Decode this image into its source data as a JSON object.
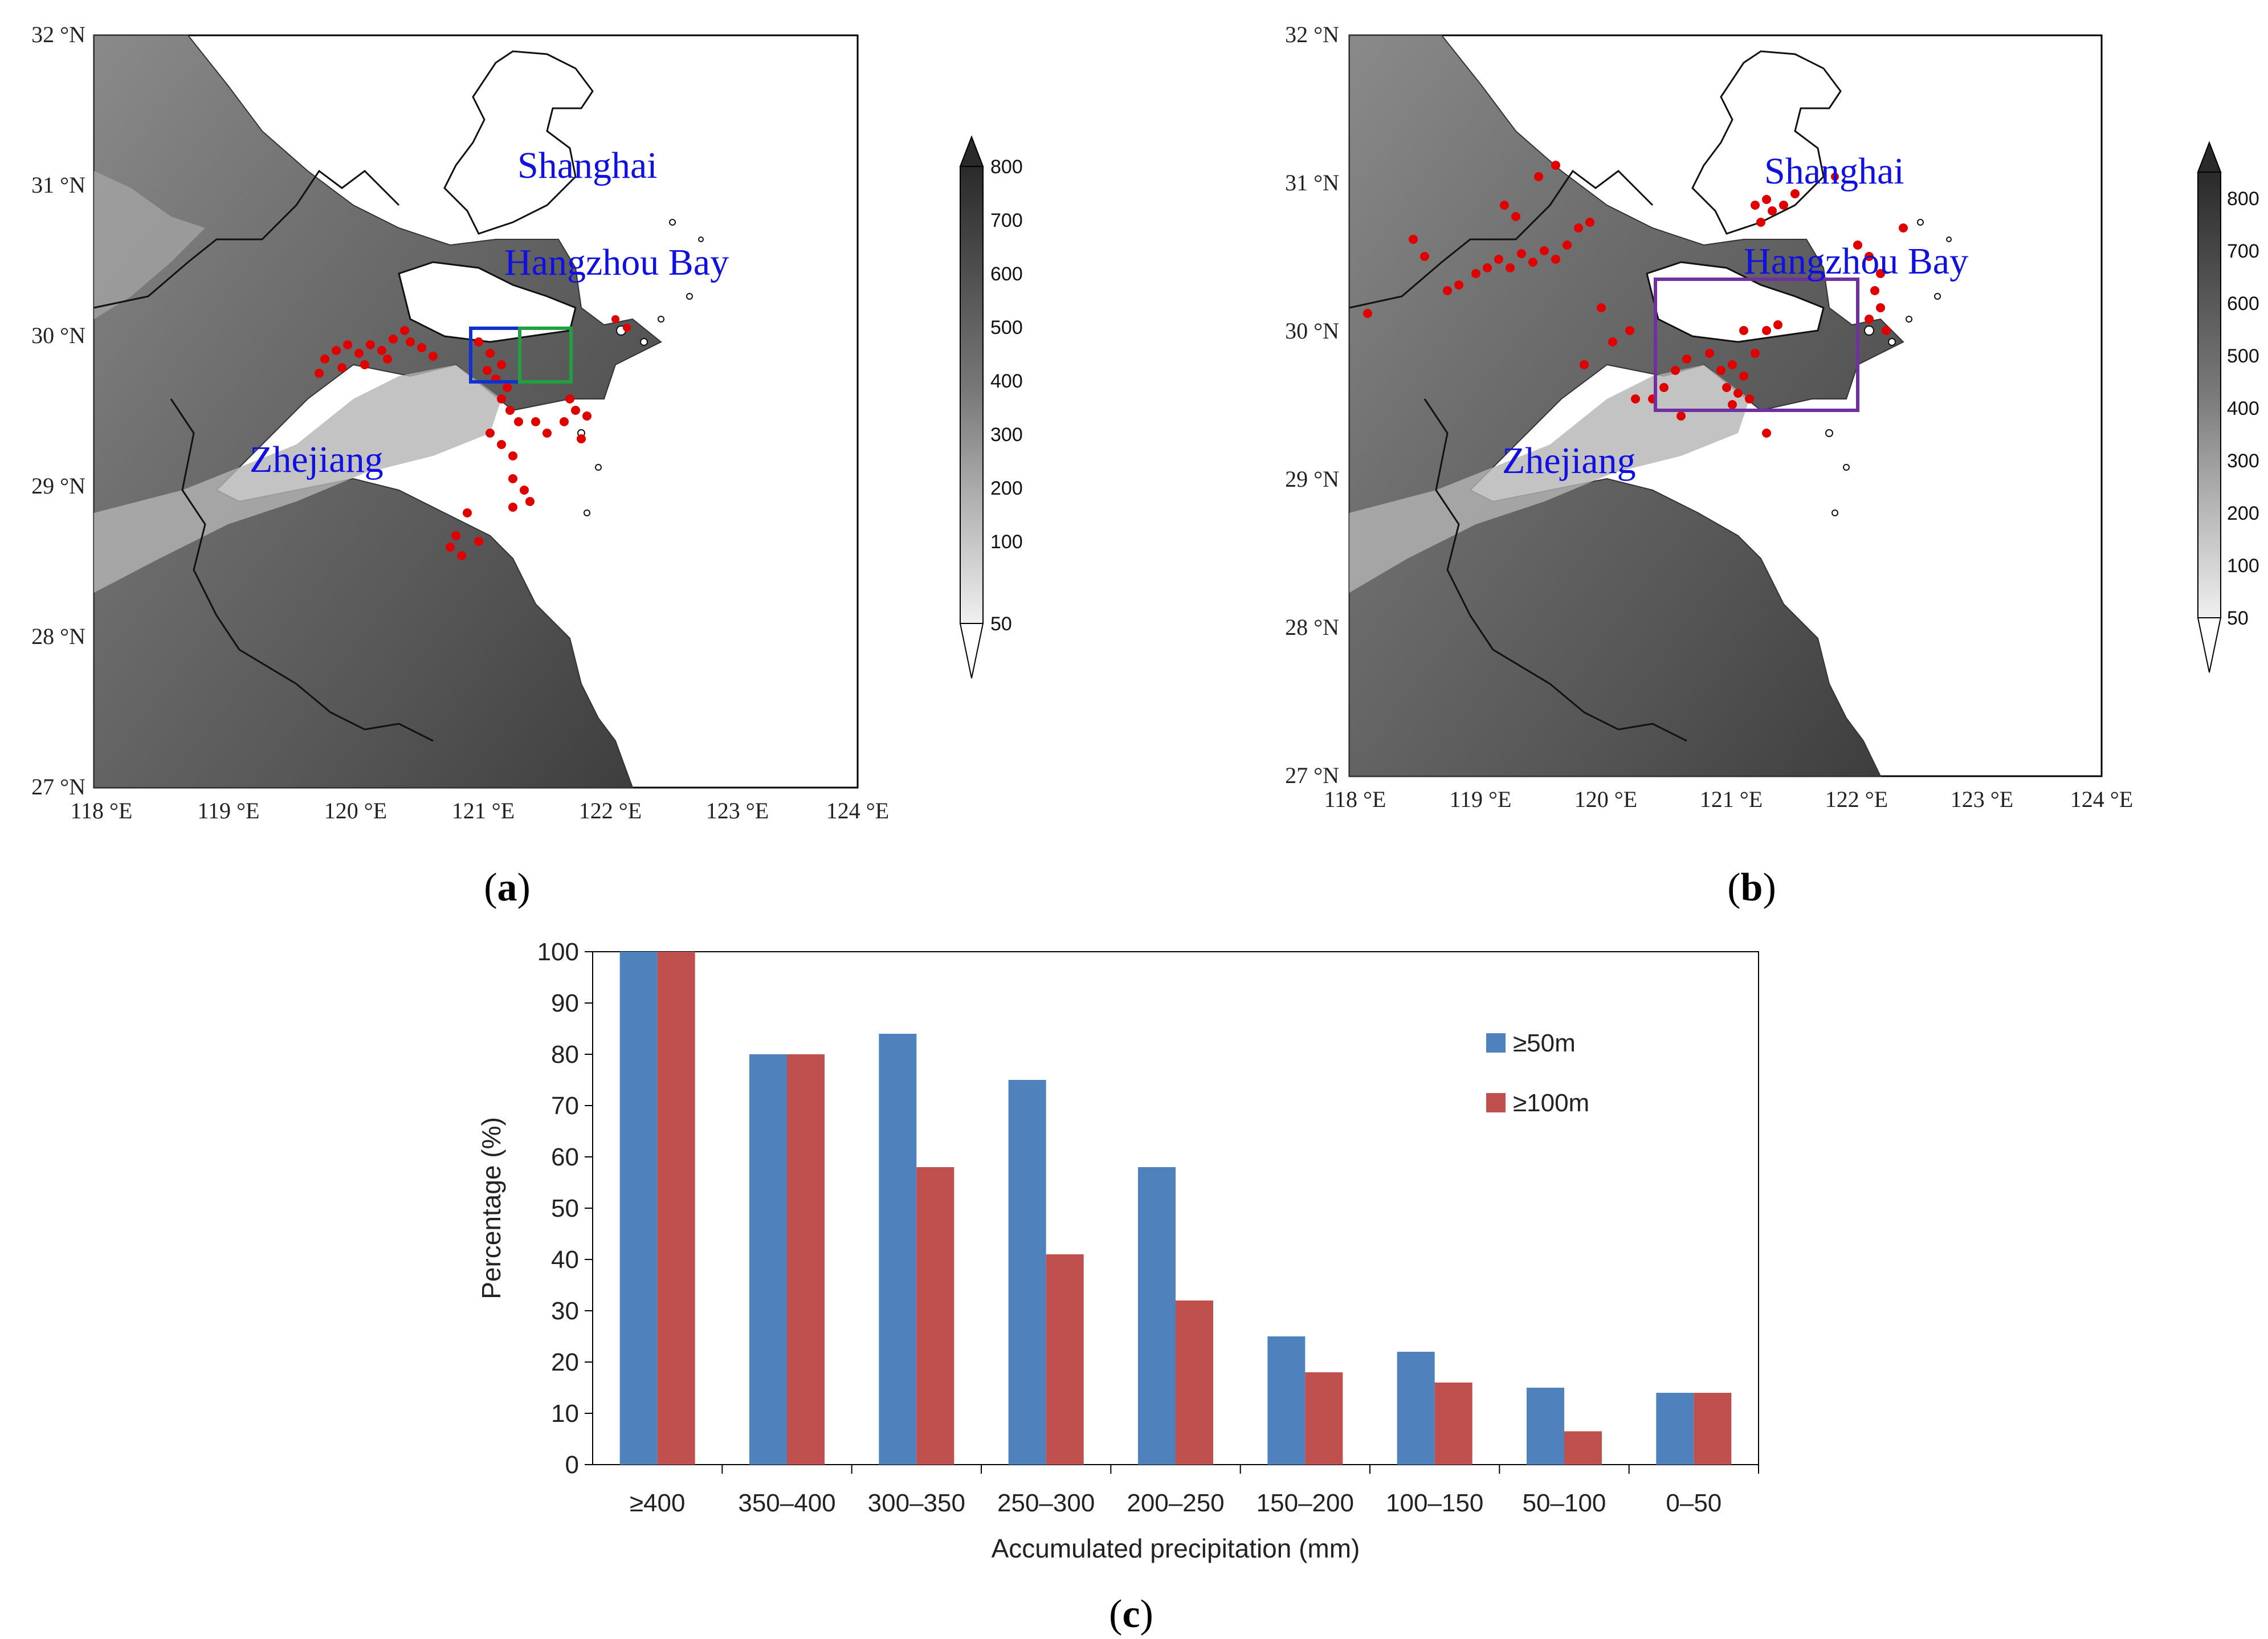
{
  "map_a": {
    "label": "a",
    "lat_labels": [
      "32 °N",
      "31 °N",
      "30 °N",
      "29 °N",
      "28 °N",
      "27 °N"
    ],
    "lon_labels": [
      "118 °E",
      "119 °E",
      "120 °E",
      "121 °E",
      "122 °E",
      "123 °E",
      "124 °E"
    ],
    "places": {
      "shanghai": "Shanghai",
      "bay": "Hangzhou Bay",
      "zhejiang": "Zhejiang"
    },
    "boxes": {
      "blue": "#1030d0",
      "green": "#20a040"
    }
  },
  "map_b": {
    "label": "b",
    "lat_labels": [
      "32 °N",
      "31 °N",
      "30 °N",
      "29 °N",
      "28 °N",
      "27 °N"
    ],
    "lon_labels": [
      "118 °E",
      "119 °E",
      "120 °E",
      "121 °E",
      "122 °E",
      "123 °E",
      "124 °E"
    ],
    "places": {
      "shanghai": "Shanghai",
      "bay": "Hangzhou Bay",
      "zhejiang": "Zhejiang"
    },
    "boxes": {
      "purple": "#7030a0"
    }
  },
  "colorbar": {
    "levels": [
      "800",
      "700",
      "600",
      "500",
      "400",
      "300",
      "200",
      "100",
      "50"
    ]
  },
  "panel_c_label": "c",
  "chart_data": {
    "type": "bar",
    "title": "",
    "categories": [
      "≥400",
      "350–400",
      "300–350",
      "250–300",
      "200–250",
      "150–200",
      "100–150",
      "50–100",
      "0–50"
    ],
    "series": [
      {
        "name": "≥50m",
        "color": "#4f81bd",
        "values": [
          100,
          80,
          84,
          75,
          58,
          25,
          22,
          15,
          14
        ]
      },
      {
        "name": "≥100m",
        "color": "#c0504d",
        "values": [
          100,
          80,
          58,
          41,
          32,
          18,
          16,
          6.5,
          14
        ]
      }
    ],
    "xlabel": "Accumulated precipitation (mm)",
    "ylabel": "Percentage (%)",
    "ylim": [
      0,
      100
    ],
    "yticks": [
      "0",
      "10",
      "20",
      "30",
      "40",
      "50",
      "60",
      "70",
      "80",
      "90",
      "100"
    ],
    "legend_position": "right"
  }
}
